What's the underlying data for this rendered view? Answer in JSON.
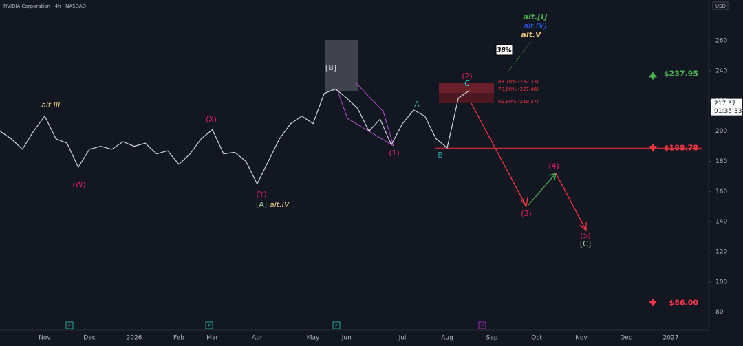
{
  "chart_data": {
    "type": "line",
    "title": "NVIDIA Corporation · 4h · NASDAQ",
    "currency": "USD",
    "categories": [
      null,
      null,
      null,
      null,
      "Nov",
      null,
      null,
      null,
      "Dec",
      null,
      null,
      null,
      "2026",
      null,
      null,
      null,
      "Feb",
      null,
      null,
      "Mar",
      null,
      null,
      null,
      "Apr",
      null,
      null,
      null,
      null,
      "May",
      null,
      null,
      "Jun",
      null,
      null,
      null,
      null,
      "Jul",
      null,
      null,
      null,
      "Aug",
      null,
      null,
      null,
      "Sep",
      null,
      null,
      null,
      "Oct",
      null,
      null,
      null,
      "Nov",
      null,
      null,
      null,
      "Dec",
      null,
      null,
      null,
      "2027",
      null,
      null
    ],
    "series": [
      {
        "color": "#d1d4dc",
        "values": [
          200,
          195,
          188,
          200,
          210,
          195,
          192,
          176,
          188,
          190,
          188,
          193,
          190,
          192,
          185,
          187,
          178,
          185,
          195,
          201,
          185,
          186,
          180,
          165,
          180,
          195,
          205,
          210,
          205,
          225,
          228,
          222,
          215,
          200,
          208,
          191,
          205,
          214,
          210,
          195,
          189,
          222,
          227,
          null,
          null,
          null,
          null,
          null,
          null,
          null,
          null,
          null,
          null,
          null,
          null,
          null,
          null,
          null,
          null,
          null,
          null,
          null,
          null
        ]
      }
    ],
    "ylim": [
      68,
      287
    ],
    "yticks": [
      80,
      100,
      120,
      140,
      160,
      180,
      200,
      220,
      240,
      260
    ],
    "grid": false,
    "last_price": 217.37,
    "countdown": "01:35:33",
    "levels": [
      {
        "value": 237.95,
        "label": "$237.95",
        "color": "#4caf50"
      },
      {
        "value": 188.78,
        "label": "$188.78",
        "color": "#f23645"
      },
      {
        "value": 86.0,
        "label": "$86.00",
        "color": "#f23645"
      }
    ],
    "fib_labels": [
      "88.70% (232.33)",
      "78.60% (227.46)",
      "61.80% (219.37)"
    ],
    "annotations": [
      "alt.III",
      "(W)",
      "(X)",
      "(Y)",
      "[A]",
      "alt.IV",
      "[B]",
      "(1)",
      "A",
      "B",
      "(2)",
      "C",
      "(3)",
      "(4)",
      "(5)",
      "[C]",
      "alt.[I]",
      "alt.(V)",
      "alt.V",
      "38%"
    ],
    "event_icons": [
      "E",
      "E",
      "E",
      "E"
    ]
  }
}
